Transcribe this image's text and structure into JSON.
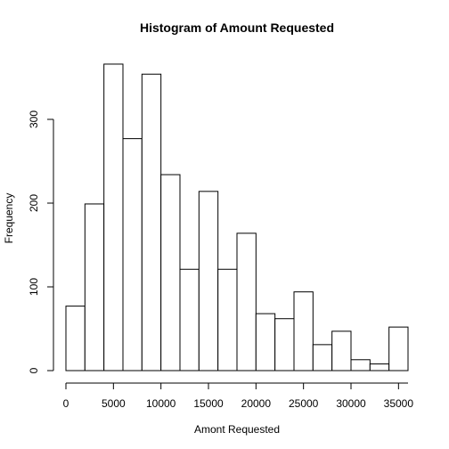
{
  "chart_data": {
    "type": "bar",
    "title": "Histogram of Amount Requested",
    "xlabel": "Amont Requested",
    "ylabel": "Frequency",
    "bin_width": 2000,
    "x": [
      0,
      2000,
      4000,
      6000,
      8000,
      10000,
      12000,
      14000,
      16000,
      18000,
      20000,
      22000,
      24000,
      26000,
      28000,
      30000,
      32000,
      34000
    ],
    "values": [
      77,
      199,
      366,
      277,
      354,
      234,
      121,
      214,
      121,
      164,
      68,
      62,
      94,
      31,
      47,
      13,
      8,
      52
    ],
    "xlim": [
      0,
      36000
    ],
    "ylim": [
      0,
      366
    ],
    "x_ticks": [
      0,
      5000,
      10000,
      15000,
      20000,
      25000,
      30000,
      35000
    ],
    "y_ticks": [
      0,
      100,
      200,
      300
    ],
    "grid": false,
    "legend": "none"
  }
}
